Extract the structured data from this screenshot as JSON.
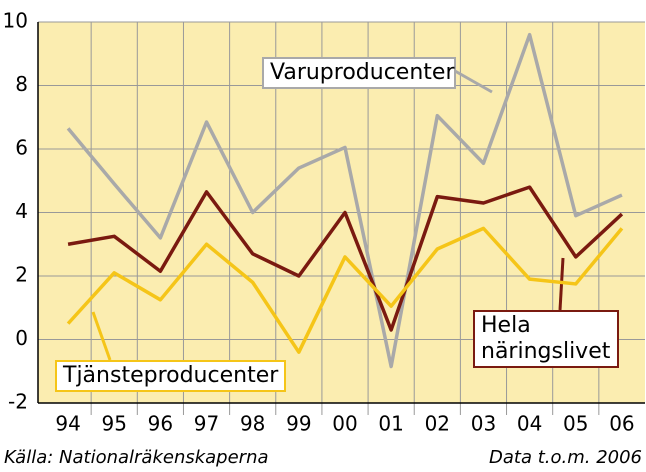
{
  "chart_data": {
    "type": "line",
    "categories": [
      "94",
      "95",
      "96",
      "97",
      "98",
      "99",
      "00",
      "01",
      "02",
      "03",
      "04",
      "05",
      "06"
    ],
    "series": [
      {
        "name": "Varuproducenter",
        "color": "#a9a9a9",
        "values": [
          6.65,
          4.9,
          3.2,
          6.85,
          4.0,
          5.4,
          6.05,
          -0.85,
          7.05,
          5.55,
          9.6,
          3.9,
          4.55
        ]
      },
      {
        "name": "Hela näringslivet",
        "color": "#7a1a10",
        "values": [
          3.0,
          3.25,
          2.15,
          4.65,
          2.7,
          2.0,
          4.0,
          0.3,
          4.5,
          4.3,
          4.8,
          2.6,
          3.95
        ]
      },
      {
        "name": "Tjänsteproducenter",
        "color": "#f5c518",
        "values": [
          0.5,
          2.1,
          1.25,
          3.0,
          1.8,
          -0.4,
          2.6,
          1.05,
          2.85,
          3.5,
          1.9,
          1.75,
          3.5
        ]
      }
    ],
    "ylim": [
      -2,
      10
    ],
    "yticks": [
      -2,
      0,
      2,
      4,
      6,
      8,
      10
    ],
    "grid": true,
    "source": "Källa: Nationalräkenskaperna",
    "note": "Data t.o.m. 2006"
  }
}
